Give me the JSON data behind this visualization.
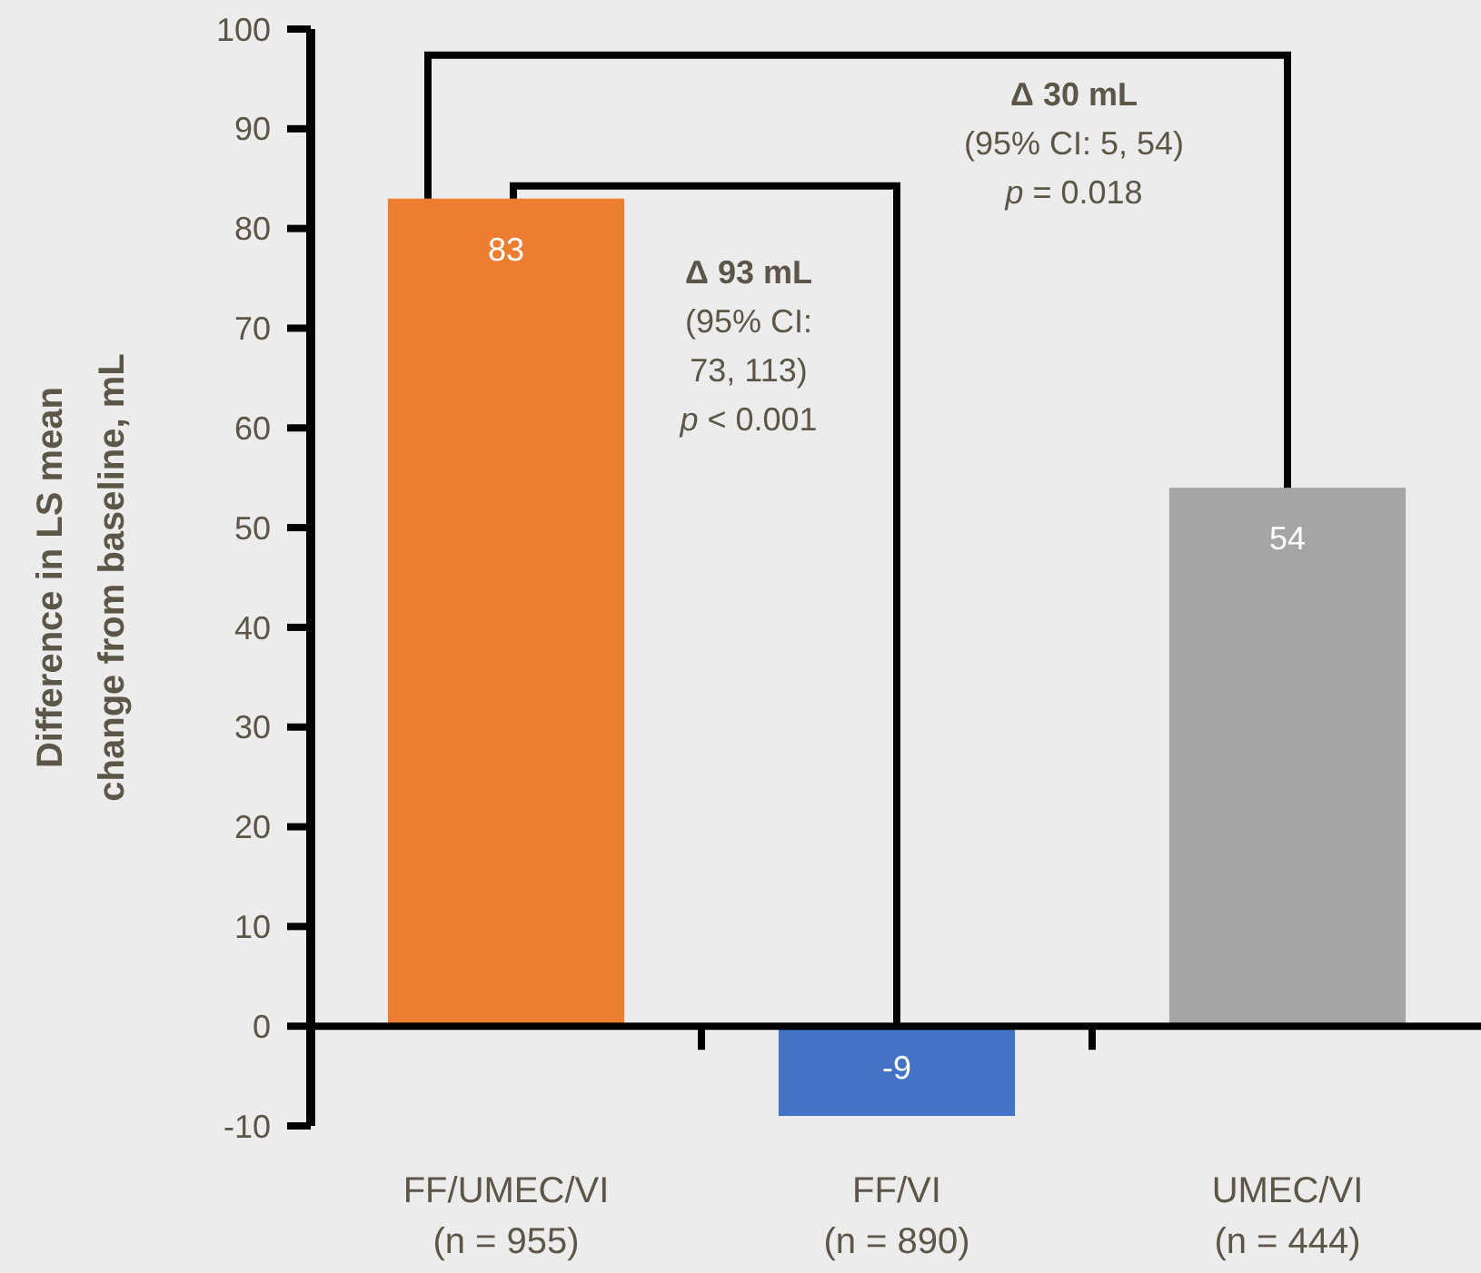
{
  "chart_data": {
    "type": "bar",
    "categories": [
      "FF/UMEC/VI\n(n = 955)",
      "FF/VI\n(n = 890)",
      "UMEC/VI\n(n = 444)"
    ],
    "values": [
      83,
      -9,
      54
    ],
    "colors": [
      "#ed7d31",
      "#4472c4",
      "#a5a5a5"
    ],
    "ylabel": "Difference in LS mean\nchange from baseline, mL",
    "ylim": [
      -10,
      100
    ],
    "yticks": [
      -10,
      0,
      10,
      20,
      30,
      40,
      50,
      60,
      70,
      80,
      90,
      100
    ],
    "data_labels": true,
    "annotations": [
      "Δ 30 mL\n(95% CI: 5, 54)\np = 0.018",
      "Δ 93 mL\n(95% CI:\n73, 113)\np < 0.001"
    ]
  }
}
